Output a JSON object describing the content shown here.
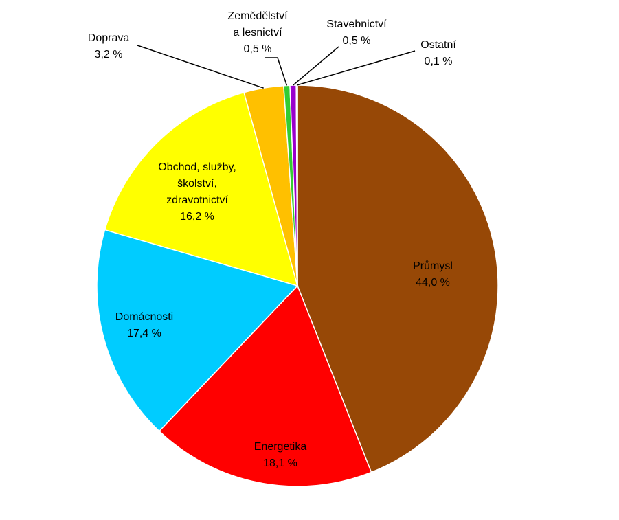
{
  "chart_data": {
    "type": "pie",
    "categories": [
      "Průmysl",
      "Energetika",
      "Domácnosti",
      "Obchod, služby,\nškolství,\nzdravotnictví",
      "Doprava",
      "Zemědělství\na lesnictví",
      "Stavebnictví",
      "Ostatní"
    ],
    "values": [
      44.0,
      18.1,
      17.4,
      16.2,
      3.2,
      0.5,
      0.5,
      0.1
    ],
    "value_labels": [
      "44,0 %",
      "18,1 %",
      "17,4 %",
      "16,2 %",
      "3,2 %",
      "0,5 %",
      "0,5 %",
      "0,1 %"
    ],
    "colors": [
      "#974806",
      "#ff0000",
      "#00ccff",
      "#ffff00",
      "#ffc000",
      "#33cc33",
      "#9900cc",
      "#e6b9b8"
    ]
  }
}
